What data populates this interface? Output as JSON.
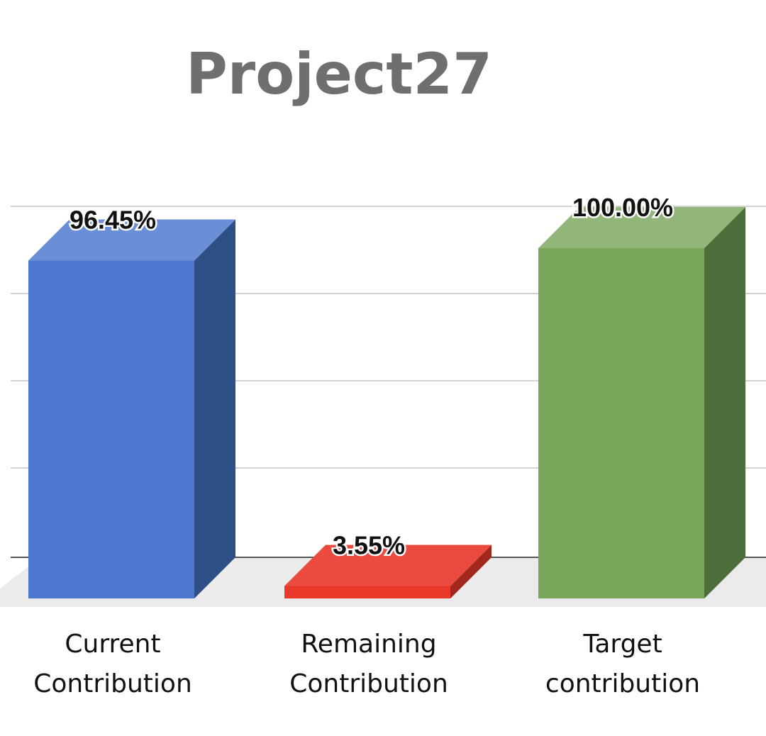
{
  "chart_data": {
    "type": "bar",
    "title": "Project27",
    "categories": [
      "Current\nContribution",
      "Remaining\nContribution",
      "Target\ncontribution"
    ],
    "values": [
      96.45,
      3.55,
      100.0
    ],
    "value_labels": [
      "96.45%",
      "3.55%",
      "100.00%"
    ],
    "colors": {
      "front": [
        "#4d78cf",
        "#e8392b",
        "#79a65b"
      ],
      "top": [
        "#6a8fd8",
        "#ea4a3f",
        "#92b67a"
      ],
      "side": [
        "#2f4f87",
        "#a3261c",
        "#4d6e3a"
      ]
    },
    "ylim": [
      0,
      100
    ],
    "grid": true,
    "legend": "none",
    "style": "3d-column",
    "xlabel": "",
    "ylabel": ""
  }
}
